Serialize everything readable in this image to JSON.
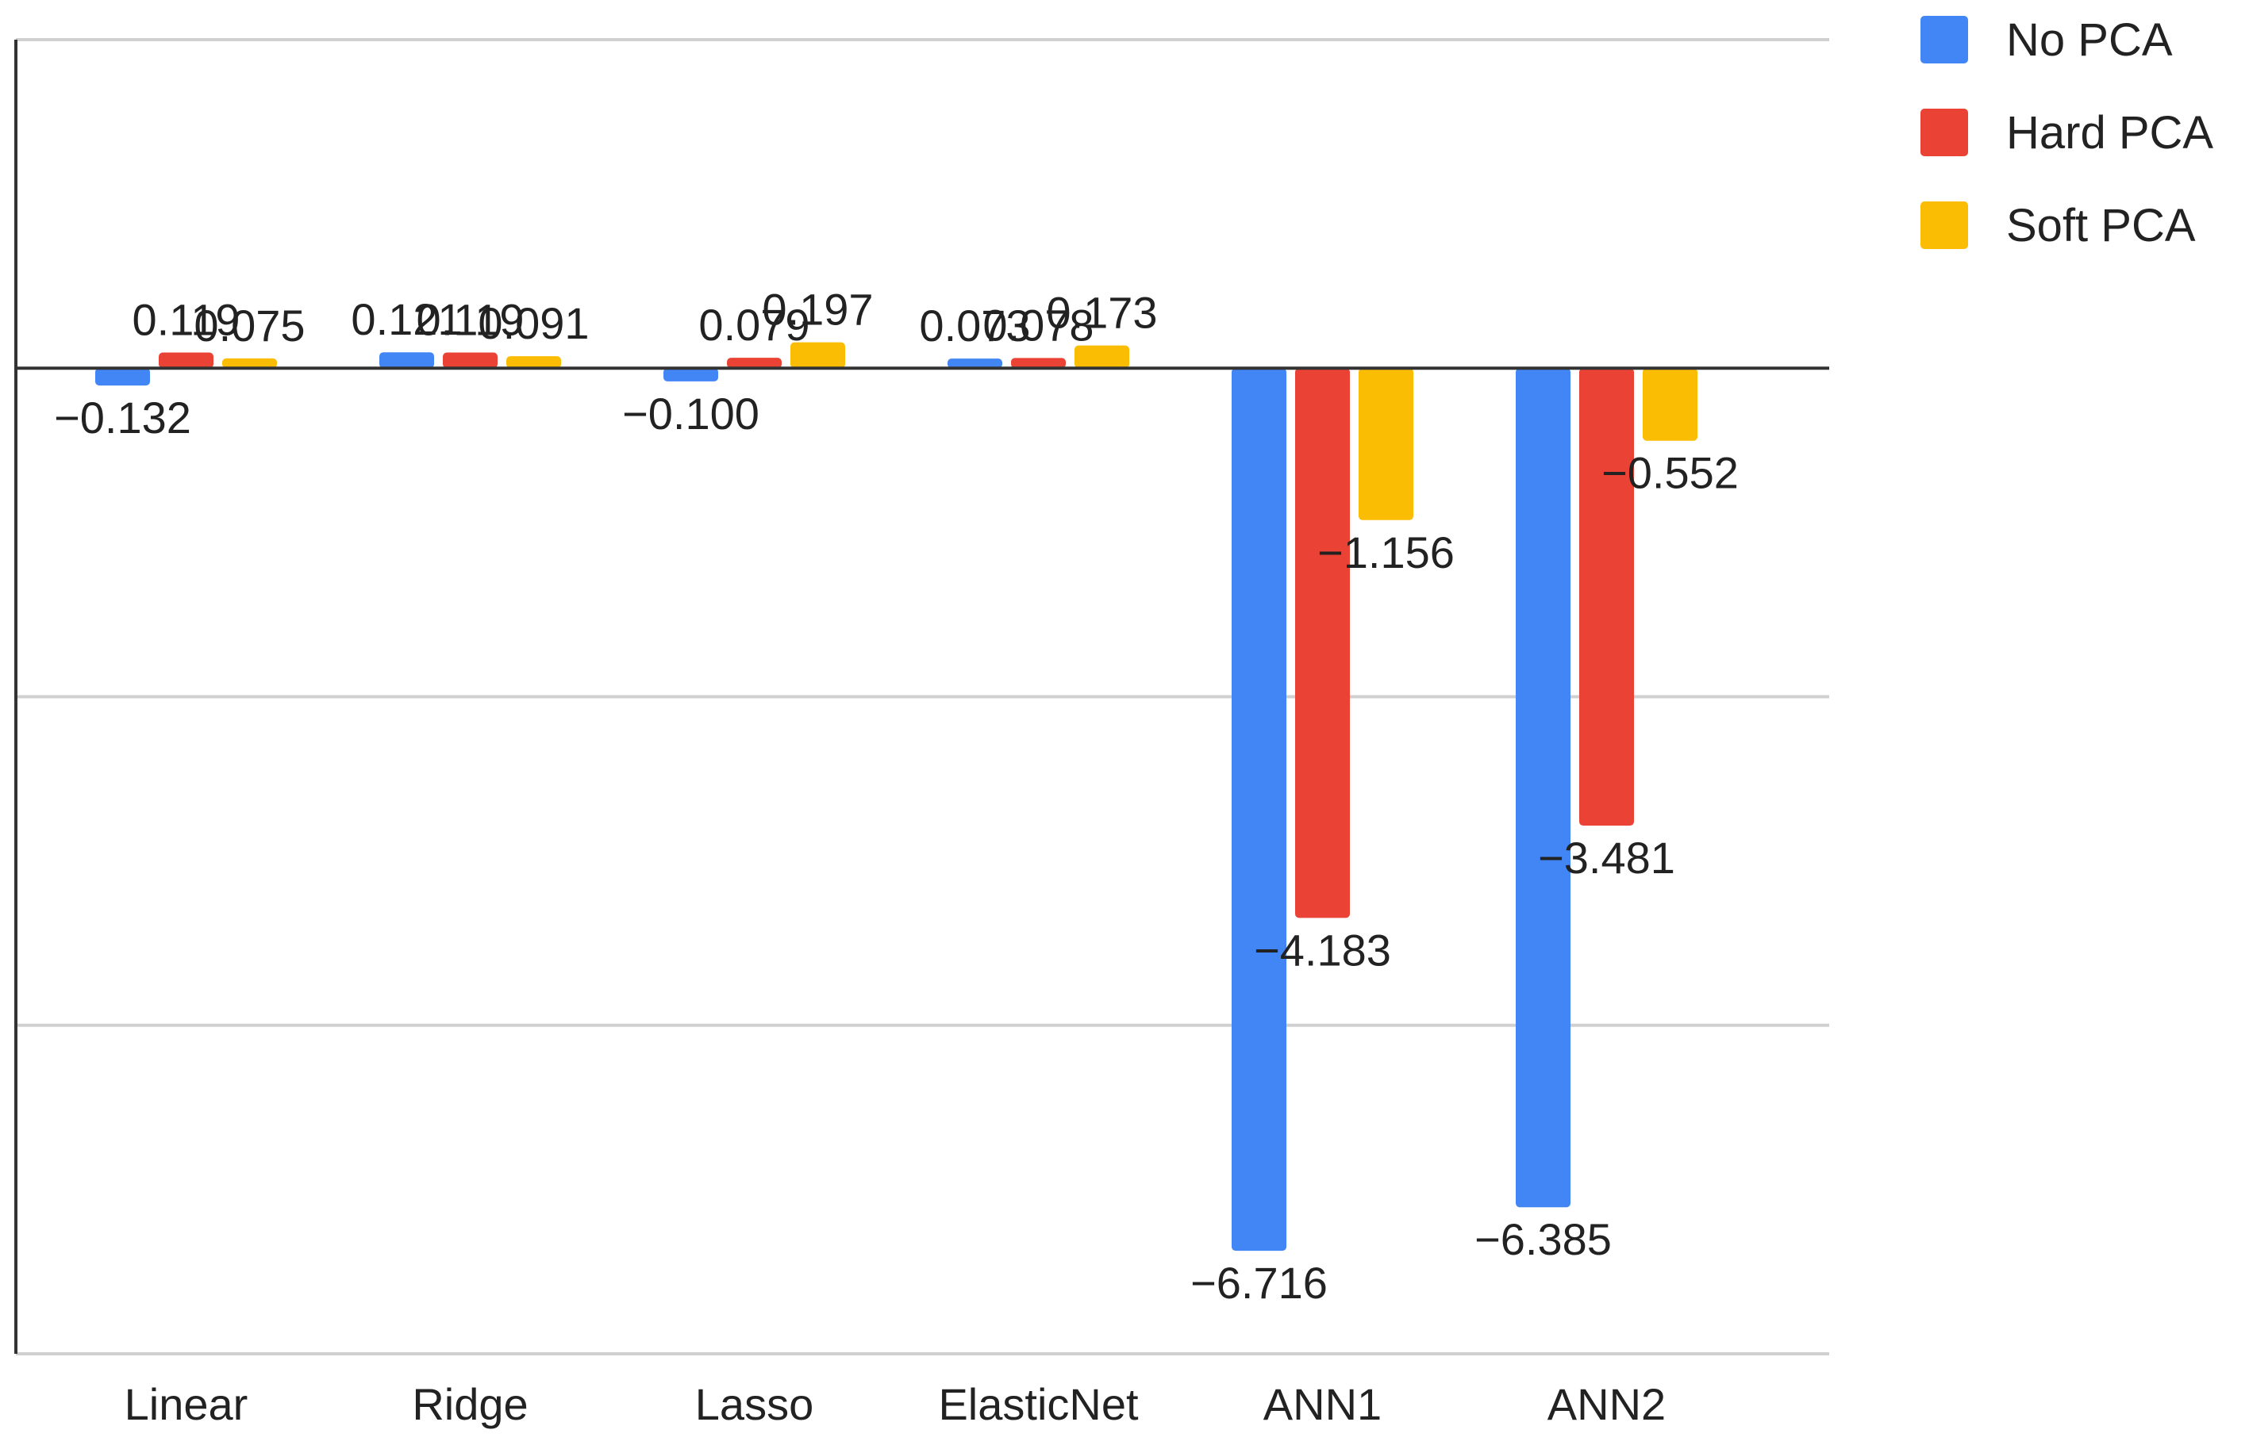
{
  "chart_data": {
    "type": "bar",
    "title": "",
    "xlabel": "",
    "ylabel": "",
    "categories": [
      "Linear",
      "Ridge",
      "Lasso",
      "ElasticNet",
      "ANN1",
      "ANN2"
    ],
    "series": [
      {
        "name": "No PCA",
        "color": "#4285F4",
        "values": [
          -0.132,
          0.121,
          -0.1,
          0.073,
          -6.716,
          -6.385
        ],
        "labels": [
          "−0.132",
          "0.121",
          "−0.100",
          "0.073",
          "−6.716",
          "−6.385"
        ]
      },
      {
        "name": "Hard PCA",
        "color": "#EA4335",
        "values": [
          0.119,
          0.119,
          0.079,
          0.078,
          -4.183,
          -3.481
        ],
        "labels": [
          "0.119",
          "0.119",
          "0.079",
          "0.078",
          "−4.183",
          "−3.481"
        ]
      },
      {
        "name": "Soft PCA",
        "color": "#FBBC04",
        "values": [
          0.075,
          0.091,
          0.197,
          0.173,
          -1.156,
          -0.552
        ],
        "labels": [
          "0.075",
          "0.091",
          "0.197",
          "0.173",
          "−1.156",
          "−0.552"
        ]
      }
    ],
    "ylim": [
      -7.5,
      2.5
    ],
    "gridlines": [
      2.5,
      0,
      -2.5,
      -5,
      -7.5
    ],
    "grid": true,
    "y_tick_labels_shown": false,
    "legend": {
      "position": "top-right",
      "entries": [
        "No PCA",
        "Hard PCA",
        "Soft PCA"
      ]
    },
    "colors": {
      "grid": "#d0d0d0",
      "axis": "#333333",
      "text": "#222222"
    }
  }
}
